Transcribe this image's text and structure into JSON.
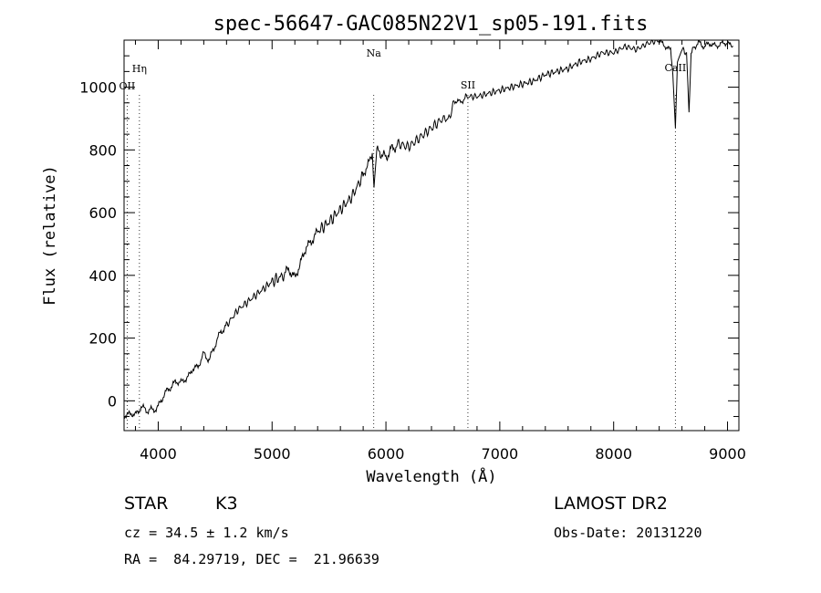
{
  "chart_data": {
    "type": "line",
    "title": "spec-56647-GAC085N22V1_sp05-191.fits",
    "xlabel": "Wavelength (Å)",
    "ylabel": "Flux (relative)",
    "xlim": [
      3700,
      9100
    ],
    "ylim": [
      -95,
      1150
    ],
    "xticks": [
      4000,
      5000,
      6000,
      7000,
      8000,
      9000
    ],
    "yticks": [
      0,
      200,
      400,
      600,
      800,
      1000
    ],
    "series": [
      {
        "name": "flux",
        "x": [
          3700,
          3750,
          3800,
          3850,
          3900,
          3950,
          4000,
          4050,
          4100,
          4150,
          4200,
          4250,
          4300,
          4350,
          4400,
          4450,
          4500,
          4550,
          4600,
          4700,
          4800,
          4900,
          5000,
          5100,
          5150,
          5200,
          5250,
          5300,
          5350,
          5400,
          5500,
          5600,
          5700,
          5800,
          5850,
          5880,
          5895,
          5920,
          6000,
          6050,
          6100,
          6200,
          6300,
          6400,
          6500,
          6560,
          6600,
          6650,
          6700,
          6800,
          6900,
          7000,
          7100,
          7200,
          7300,
          7400,
          7500,
          7600,
          7700,
          7800,
          7900,
          8000,
          8100,
          8200,
          8300,
          8400,
          8450,
          8500,
          8520,
          8542,
          8560,
          8600,
          8640,
          8662,
          8680,
          8700,
          8750,
          8800,
          8850,
          8900,
          8950,
          9000,
          9050
        ],
        "y": [
          -50,
          -40,
          -45,
          -20,
          -30,
          -30,
          -20,
          20,
          40,
          60,
          60,
          70,
          100,
          110,
          150,
          130,
          180,
          220,
          240,
          290,
          320,
          350,
          380,
          400,
          420,
          390,
          440,
          490,
          510,
          540,
          570,
          610,
          650,
          720,
          760,
          790,
          680,
          800,
          780,
          800,
          820,
          810,
          840,
          870,
          900,
          900,
          960,
          950,
          970,
          970,
          980,
          990,
          1000,
          1010,
          1020,
          1040,
          1050,
          1060,
          1080,
          1090,
          1110,
          1110,
          1130,
          1120,
          1140,
          1150,
          1130,
          1120,
          1040,
          870,
          1080,
          1120,
          1110,
          920,
          1100,
          1130,
          1140,
          1130,
          1140,
          1130,
          1140,
          1140,
          1130
        ]
      }
    ],
    "lines": [
      {
        "name": "OII",
        "wavelength": 3727
      },
      {
        "name": "Hη",
        "wavelength": 3835
      },
      {
        "name": "Na",
        "wavelength": 5893
      },
      {
        "name": "SII",
        "wavelength": 6720
      },
      {
        "name": "CaII",
        "wavelength": 8542
      }
    ]
  },
  "info": {
    "class_label": "STAR",
    "subclass": "K3",
    "survey": "LAMOST DR2",
    "cz": "cz = 34.5 ± 1.2 km/s",
    "obs_date": "Obs-Date: 20131220",
    "coords": "RA =  84.29719, DEC =  21.96639"
  }
}
